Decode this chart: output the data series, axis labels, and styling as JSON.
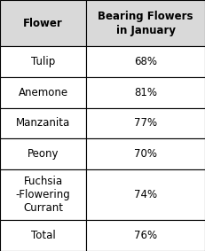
{
  "header_col1": "Flower",
  "header_col2": "Bearing Flowers\nin January",
  "rows": [
    [
      "Tulip",
      "68%"
    ],
    [
      "Anemone",
      "81%"
    ],
    [
      "Manzanita",
      "77%"
    ],
    [
      "Peony",
      "70%"
    ],
    [
      "Fuchsia\n-Flowering\nCurrant",
      "74%"
    ],
    [
      "Total",
      "76%"
    ]
  ],
  "header_bg": "#d9d9d9",
  "row_bg": "#ffffff",
  "border_color": "#000000",
  "text_color": "#000000",
  "header_fontsize": 8.5,
  "row_fontsize": 8.5,
  "fig_width": 2.31,
  "fig_height": 2.83,
  "col_split": 0.42
}
